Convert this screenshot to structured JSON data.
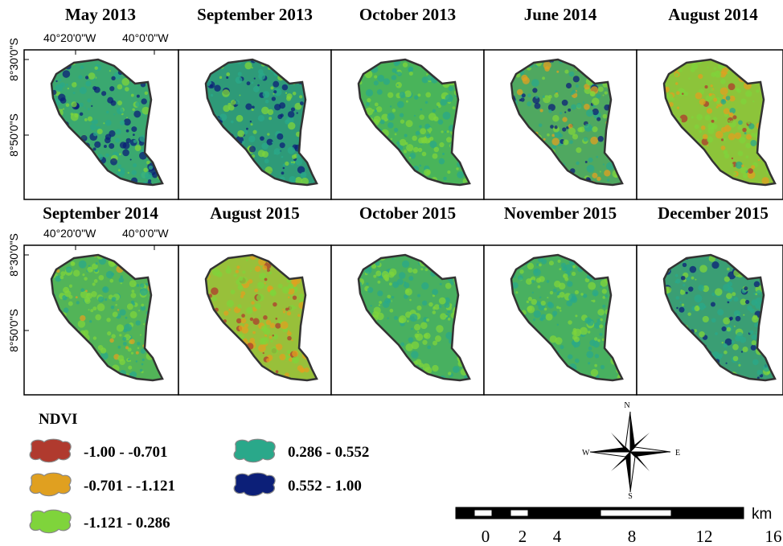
{
  "panels": [
    {
      "title": "May 2013"
    },
    {
      "title": "September 2013"
    },
    {
      "title": "October 2013"
    },
    {
      "title": "June 2014"
    },
    {
      "title": "August 2014"
    },
    {
      "title": "September 2014"
    },
    {
      "title": "August 2015"
    },
    {
      "title": "October 2015"
    },
    {
      "title": "November 2015"
    },
    {
      "title": "December 2015"
    }
  ],
  "coordinates": [
    {
      "x_labels": [
        "40°20'0\"W",
        "40°0'0\"W"
      ],
      "y_labels": [
        "8°30'0\"S",
        "8°50'0\"S"
      ]
    },
    {
      "x_labels": [
        "40°20'0\"W",
        "40°0'0\"W"
      ],
      "y_labels": [
        "8°30'0\"S",
        "8°50'0\"S"
      ]
    }
  ],
  "legend": {
    "title": "NDVI",
    "items": [
      {
        "label": "-1.00 - -0.701"
      },
      {
        "label": "-0.701 - -1.121"
      },
      {
        "label": "-1.121 - 0.286"
      },
      {
        "label": "0.286 - 0.552"
      },
      {
        "label": "0.552 - 1.00"
      }
    ]
  },
  "compass": {
    "n": "N",
    "s": "S",
    "e": "E",
    "w": "W"
  },
  "scale_bar": {
    "labels": [
      "0",
      "2",
      "4",
      "8",
      "12",
      "16"
    ],
    "unit": "km"
  }
}
